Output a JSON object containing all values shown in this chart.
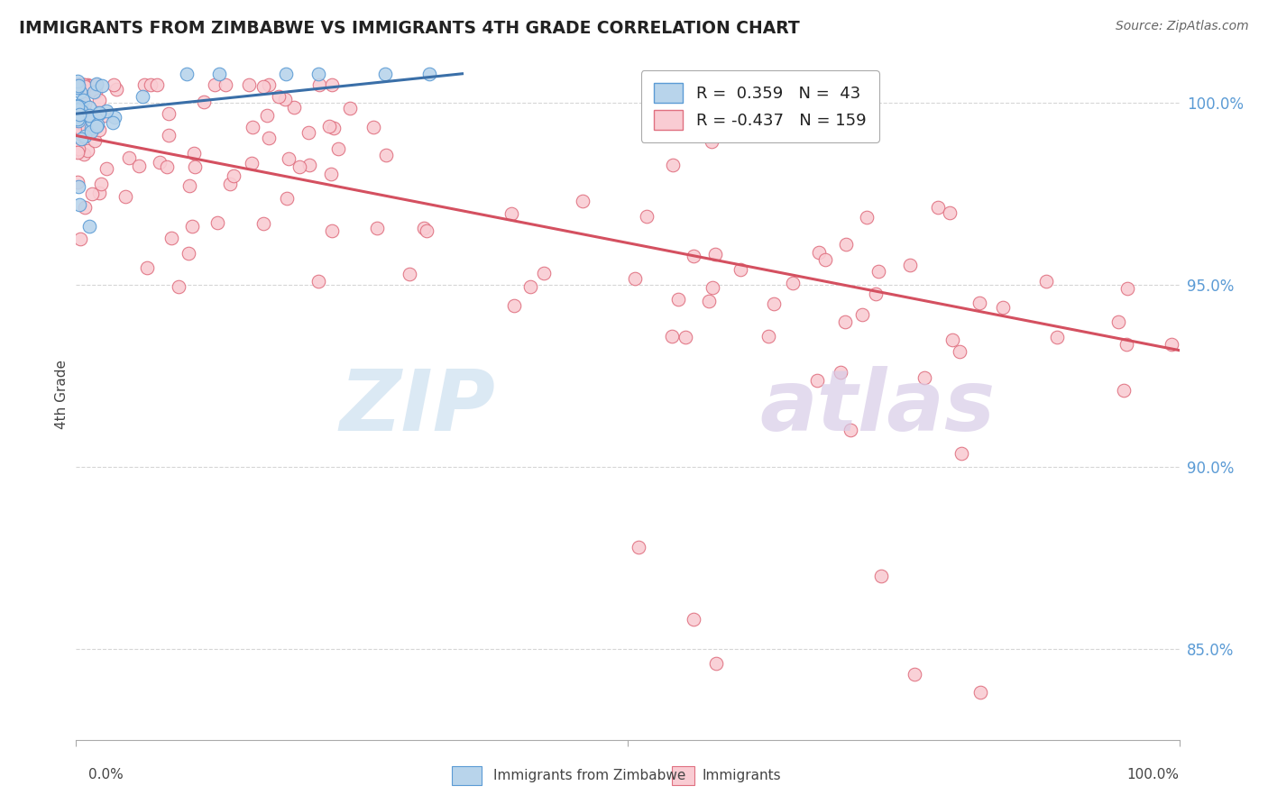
{
  "title": "IMMIGRANTS FROM ZIMBABWE VS IMMIGRANTS 4TH GRADE CORRELATION CHART",
  "source": "Source: ZipAtlas.com",
  "ylabel": "4th Grade",
  "y_tick_labels": [
    "85.0%",
    "90.0%",
    "95.0%",
    "100.0%"
  ],
  "y_tick_values": [
    0.85,
    0.9,
    0.95,
    1.0
  ],
  "legend_label1": "R =  0.359   N =  43",
  "legend_label2": "R = -0.437   N = 159",
  "blue_fill": "#b8d4eb",
  "blue_edge": "#5b9bd5",
  "blue_line": "#3a6fa8",
  "pink_fill": "#f9ccd3",
  "pink_edge": "#e07080",
  "pink_line": "#d45060",
  "bg_color": "#ffffff",
  "grid_color": "#cccccc",
  "ytick_color": "#5b9bd5",
  "title_color": "#222222",
  "source_color": "#666666",
  "ylabel_color": "#444444",
  "watermark_zip_color": "#cde0f0",
  "watermark_atlas_color": "#d8cce8",
  "ylim_low": 0.825,
  "ylim_high": 1.015,
  "xlim_low": 0.0,
  "xlim_high": 1.0
}
